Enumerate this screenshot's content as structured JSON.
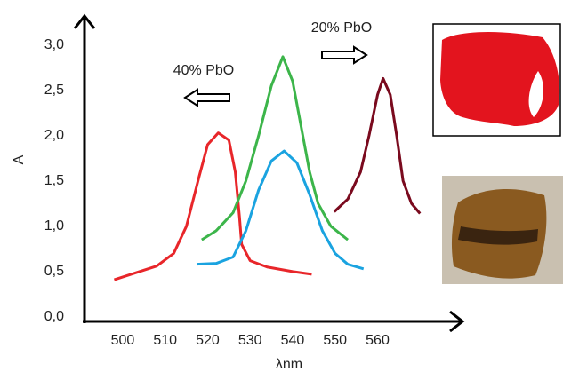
{
  "chart_data": {
    "type": "line",
    "xlabel": "λnm",
    "ylabel": "A",
    "annotations": [
      "40% PbO",
      "20% PbO"
    ],
    "xlim": [
      491,
      580
    ],
    "xticks": [
      500,
      510,
      520,
      530,
      540,
      550,
      560
    ],
    "ylim": [
      -0.05,
      3.3
    ],
    "yticks": [
      {
        "value": 0,
        "label": "0,0"
      },
      {
        "value": 0.5,
        "label": "0,5"
      },
      {
        "value": 1,
        "label": "1,0"
      },
      {
        "value": 1.5,
        "label": "1,5"
      },
      {
        "value": 2,
        "label": "2,0"
      },
      {
        "value": 2.5,
        "label": "2,5"
      },
      {
        "value": 3,
        "label": "3,0"
      }
    ],
    "grid": false,
    "series": [
      {
        "color": "#e8262a",
        "x": [
          498,
          504,
          508,
          512,
          515,
          518,
          520,
          522.5,
          525,
          526.5,
          527.5,
          528,
          530,
          534,
          540,
          544.5
        ],
        "values": [
          0.41,
          0.5,
          0.56,
          0.7,
          1.0,
          1.55,
          1.9,
          2.03,
          1.95,
          1.6,
          1.1,
          0.8,
          0.62,
          0.55,
          0.5,
          0.47
        ]
      },
      {
        "color": "#3cb54a",
        "x": [
          518.6,
          522,
          526,
          529,
          532,
          535,
          537.7,
          540,
          542,
          544,
          546,
          549,
          553
        ],
        "values": [
          0.85,
          0.95,
          1.15,
          1.5,
          2.0,
          2.55,
          2.87,
          2.6,
          2.1,
          1.6,
          1.25,
          1.0,
          0.85
        ]
      },
      {
        "color": "#1aa3e0",
        "x": [
          517.4,
          522,
          526,
          529,
          532,
          535,
          538,
          541,
          544,
          547,
          550,
          553,
          556.7
        ],
        "values": [
          0.58,
          0.59,
          0.66,
          0.95,
          1.4,
          1.72,
          1.83,
          1.7,
          1.35,
          0.95,
          0.7,
          0.58,
          0.53
        ]
      },
      {
        "color": "#7a0a1e",
        "x": [
          549.8,
          553,
          556,
          558,
          560,
          561.3,
          563,
          564.5,
          566,
          568,
          570
        ],
        "values": [
          1.16,
          1.3,
          1.6,
          2.0,
          2.45,
          2.63,
          2.45,
          2.0,
          1.5,
          1.25,
          1.14
        ]
      }
    ]
  }
}
